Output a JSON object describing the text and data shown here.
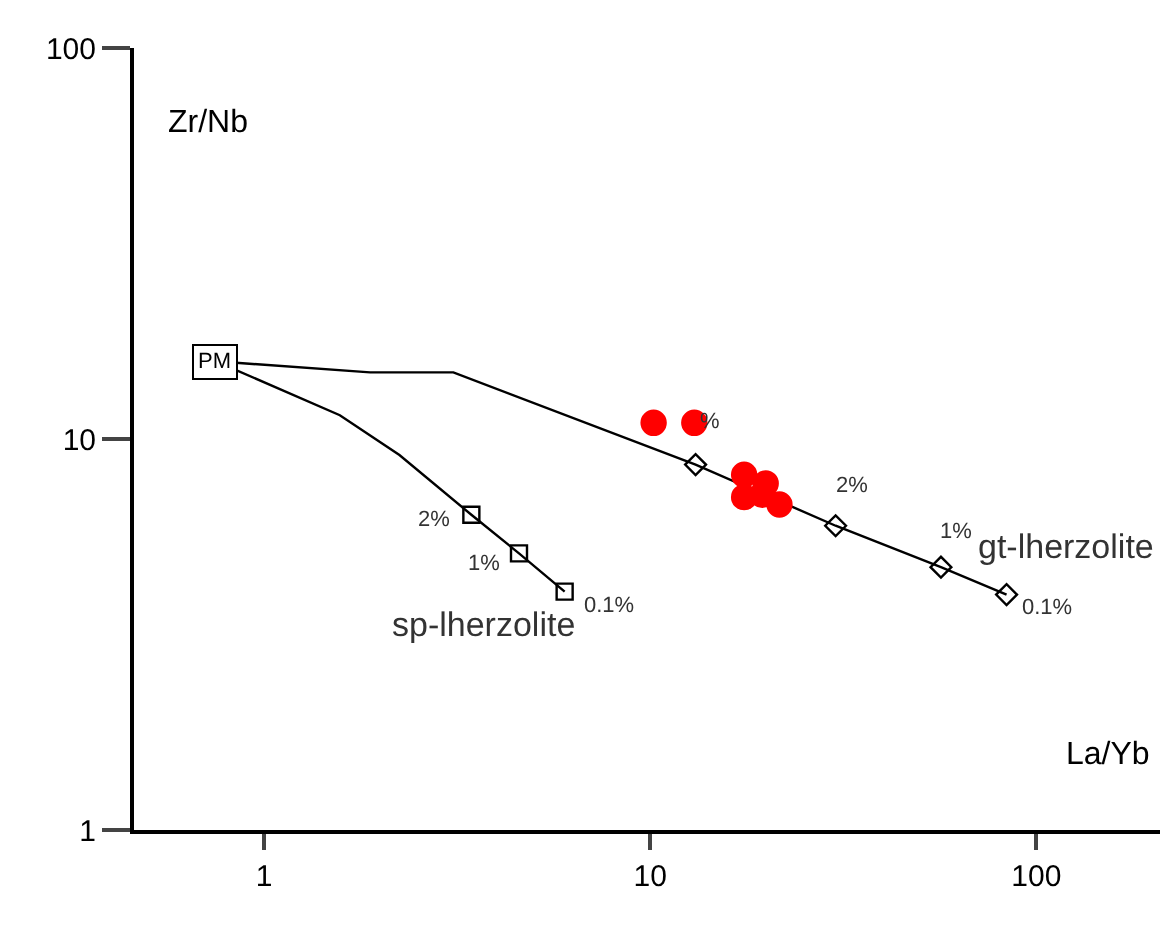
{
  "chart_data": {
    "type": "line",
    "xlabel": "La/Yb",
    "ylabel": "Zr/Nb",
    "log": "xy",
    "xlim": [
      0.46,
      209
    ],
    "ylim": [
      1,
      100
    ],
    "xticks": [
      1,
      10,
      100
    ],
    "yticks": [
      1,
      10,
      100
    ],
    "series": [
      {
        "color": "#000000",
        "marker": "none",
        "x": [
          0.75,
          1.57,
          2.24,
          3.44,
          4.57,
          6.0
        ],
        "values": [
          15.8,
          11.5,
          9.1,
          6.4,
          5.1,
          4.07
        ]
      },
      {
        "color": "#000000",
        "marker": "none",
        "x": [
          0.75,
          1.88,
          3.09,
          13.1,
          30.2,
          56.6,
          83.7
        ],
        "values": [
          15.8,
          14.8,
          14.8,
          8.6,
          6.0,
          4.7,
          4.0
        ]
      },
      {
        "type": "scatter",
        "color": "#000000",
        "marker": "square",
        "x": [
          3.44,
          4.57,
          6.0
        ],
        "values": [
          6.4,
          5.1,
          4.07
        ]
      },
      {
        "type": "scatter",
        "color": "#000000",
        "marker": "diamond",
        "x": [
          13.1,
          30.2,
          56.6,
          83.7
        ],
        "values": [
          8.6,
          6.0,
          4.7,
          4.0
        ]
      },
      {
        "type": "scatter",
        "color": "#ff0000",
        "marker": "circle",
        "x": [
          10.2,
          13.0,
          17.5,
          19.9,
          17.5,
          19.5,
          21.6
        ],
        "values": [
          11.0,
          11.0,
          8.1,
          7.7,
          7.1,
          7.2,
          6.8
        ]
      }
    ],
    "annotations": [
      {
        "text": "PM",
        "x": 0.75,
        "y": 15.8
      },
      {
        "text": "2%",
        "x": 3.44,
        "y": 6.4
      },
      {
        "text": "1%",
        "x": 4.57,
        "y": 5.1
      },
      {
        "text": "0.1%",
        "x": 6.0,
        "y": 4.07
      },
      {
        "text": "sp-lherzolite",
        "x": 6.0,
        "y": 4.07
      },
      {
        "text": "%",
        "x": 13.1,
        "y": 8.6
      },
      {
        "text": "2%",
        "x": 30.2,
        "y": 6.0
      },
      {
        "text": "1%",
        "x": 56.6,
        "y": 4.7
      },
      {
        "text": "0.1%",
        "x": 83.7,
        "y": 4.0
      },
      {
        "text": "gt-lherzolite",
        "x": 83.7,
        "y": 4.0
      }
    ]
  }
}
